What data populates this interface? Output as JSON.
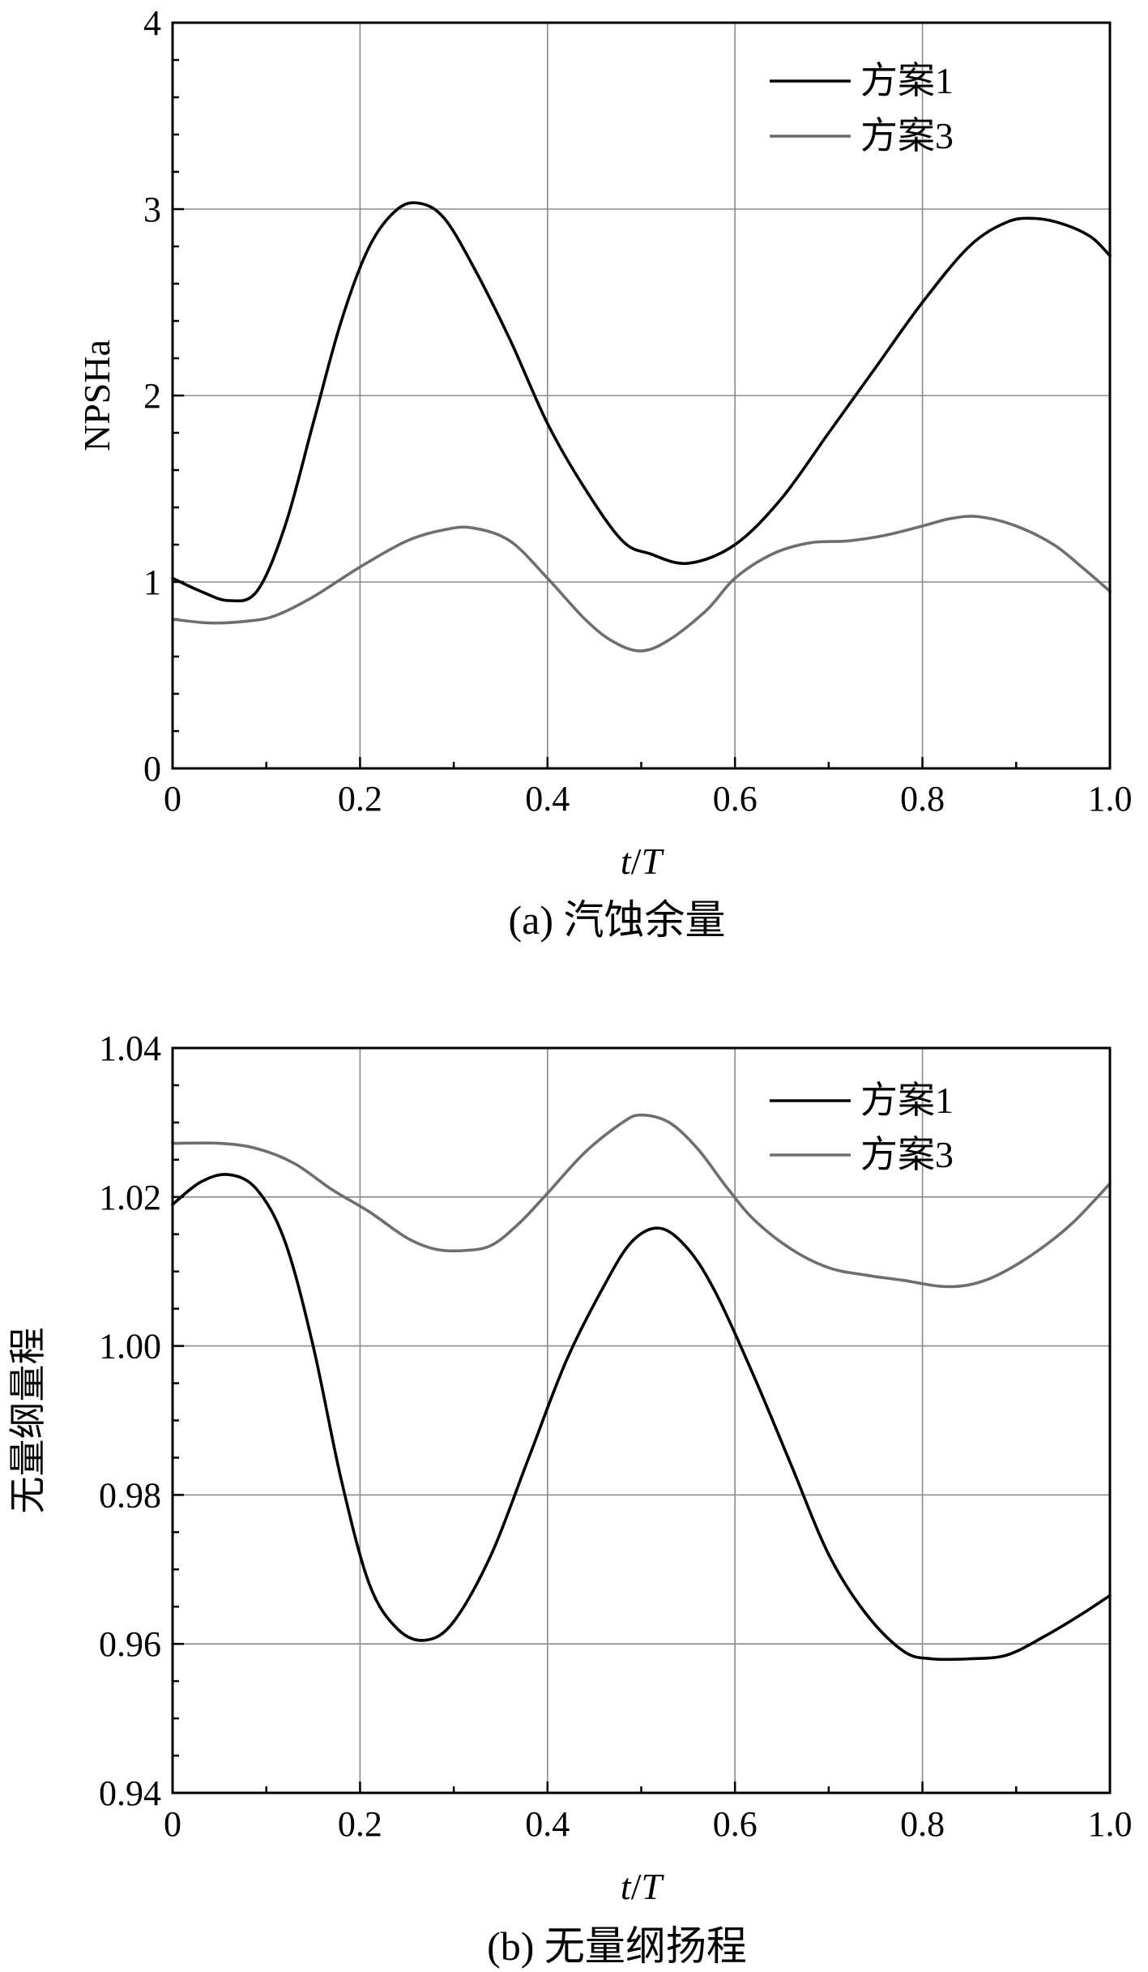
{
  "chart_data": [
    {
      "type": "line",
      "caption": "(a) 汽蚀余量",
      "xlabel_italic_t": "t",
      "xlabel_slash": "/",
      "xlabel_italic_T": "T",
      "ylabel": "NPSHa",
      "xlim": [
        0,
        1.0
      ],
      "ylim": [
        0,
        4
      ],
      "xticks": [
        "0",
        "0.2",
        "0.4",
        "0.6",
        "0.8",
        "1.0"
      ],
      "yticks": [
        "0",
        "1",
        "2",
        "3",
        "4"
      ],
      "grid": true,
      "legend_position": "top-right",
      "series": [
        {
          "name": "方案1",
          "color": "#000000",
          "x": [
            0,
            0.03,
            0.06,
            0.09,
            0.12,
            0.15,
            0.18,
            0.21,
            0.24,
            0.265,
            0.29,
            0.32,
            0.36,
            0.4,
            0.44,
            0.48,
            0.51,
            0.55,
            0.6,
            0.65,
            0.7,
            0.75,
            0.8,
            0.85,
            0.89,
            0.92,
            0.95,
            0.98,
            1.0
          ],
          "y": [
            1.02,
            0.95,
            0.9,
            0.95,
            1.3,
            1.85,
            2.4,
            2.8,
            3.0,
            3.03,
            2.95,
            2.7,
            2.3,
            1.85,
            1.5,
            1.22,
            1.15,
            1.1,
            1.2,
            1.45,
            1.8,
            2.15,
            2.5,
            2.8,
            2.93,
            2.95,
            2.92,
            2.85,
            2.75
          ]
        },
        {
          "name": "方案3",
          "color": "#6e6e6e",
          "x": [
            0,
            0.04,
            0.08,
            0.11,
            0.15,
            0.2,
            0.25,
            0.29,
            0.32,
            0.36,
            0.4,
            0.44,
            0.47,
            0.5,
            0.53,
            0.57,
            0.6,
            0.64,
            0.68,
            0.72,
            0.76,
            0.8,
            0.83,
            0.86,
            0.9,
            0.94,
            0.97,
            1.0
          ],
          "y": [
            0.8,
            0.78,
            0.79,
            0.82,
            0.92,
            1.08,
            1.22,
            1.28,
            1.29,
            1.22,
            1.02,
            0.8,
            0.68,
            0.63,
            0.69,
            0.85,
            1.02,
            1.15,
            1.21,
            1.22,
            1.25,
            1.3,
            1.34,
            1.35,
            1.3,
            1.2,
            1.08,
            0.95
          ]
        }
      ]
    },
    {
      "type": "line",
      "caption": "(b) 无量纲扬程",
      "xlabel_italic_t": "t",
      "xlabel_slash": "/",
      "xlabel_italic_T": "T",
      "ylabel": "无量纲量程",
      "xlim": [
        0,
        1.0
      ],
      "ylim": [
        0.94,
        1.04
      ],
      "xticks": [
        "0",
        "0.2",
        "0.4",
        "0.6",
        "0.8",
        "1.0"
      ],
      "yticks": [
        "0.94",
        "0.96",
        "0.98",
        "1.00",
        "1.02",
        "1.04"
      ],
      "grid": true,
      "legend_position": "top-right",
      "series": [
        {
          "name": "方案1",
          "color": "#000000",
          "x": [
            0,
            0.03,
            0.06,
            0.09,
            0.12,
            0.15,
            0.18,
            0.21,
            0.24,
            0.27,
            0.3,
            0.34,
            0.38,
            0.42,
            0.46,
            0.49,
            0.52,
            0.55,
            0.58,
            0.62,
            0.66,
            0.7,
            0.74,
            0.78,
            0.81,
            0.85,
            0.89,
            0.93,
            0.97,
            1.0
          ],
          "y": [
            1.019,
            1.022,
            1.023,
            1.021,
            1.014,
            1.0,
            0.982,
            0.968,
            0.962,
            0.9605,
            0.963,
            0.972,
            0.985,
            0.998,
            1.008,
            1.014,
            1.0158,
            1.013,
            1.007,
            0.996,
            0.984,
            0.972,
            0.964,
            0.959,
            0.958,
            0.958,
            0.9585,
            0.961,
            0.964,
            0.9665
          ]
        },
        {
          "name": "方案3",
          "color": "#6e6e6e",
          "x": [
            0,
            0.05,
            0.09,
            0.13,
            0.17,
            0.21,
            0.25,
            0.28,
            0.31,
            0.34,
            0.37,
            0.4,
            0.44,
            0.48,
            0.5,
            0.53,
            0.56,
            0.59,
            0.62,
            0.66,
            0.7,
            0.74,
            0.78,
            0.82,
            0.85,
            0.88,
            0.92,
            0.96,
            1.0
          ],
          "y": [
            1.0272,
            1.0272,
            1.0265,
            1.0245,
            1.021,
            1.018,
            1.0145,
            1.013,
            1.0128,
            1.0135,
            1.0165,
            1.0205,
            1.026,
            1.03,
            1.031,
            1.03,
            1.0265,
            1.0215,
            1.017,
            1.013,
            1.0105,
            1.0095,
            1.0088,
            1.008,
            1.0082,
            1.0095,
            1.0125,
            1.0165,
            1.0218
          ]
        }
      ]
    }
  ]
}
